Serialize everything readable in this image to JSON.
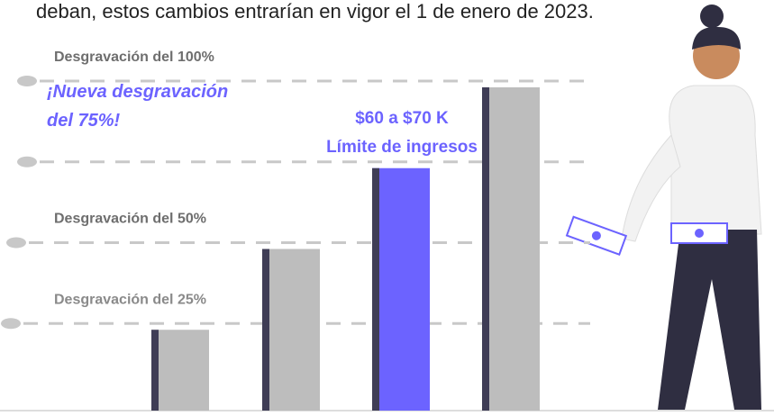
{
  "chart_data": {
    "type": "bar",
    "top_text": "deban, estos cambios entrarían en vigor el 1 de enero de 2023.",
    "categories": [
      null,
      null,
      null,
      null
    ],
    "values": [
      25,
      50,
      75,
      100
    ],
    "colors": [
      "#bdbdbd",
      "#bdbdbd",
      "#6c63ff",
      "#bdbdbd"
    ],
    "edge_color": "#3f3d56",
    "ylim": [
      0,
      100
    ],
    "yticks": [
      {
        "value": 25,
        "label": [
          "Desgravación del 25%"
        ],
        "color": "#8a8a8a"
      },
      {
        "value": 50,
        "label": [
          "Desgravación del 50%"
        ],
        "color": "#6e6e6e"
      },
      {
        "value": 75,
        "label": [
          "¡Nueva desgravación",
          "del 75%!"
        ],
        "color": "#6c63ff"
      },
      {
        "value": 100,
        "label": [
          "Desgravación del 100%"
        ],
        "color": "#6e6e6e"
      }
    ],
    "grid": true,
    "annotation": [
      "$60 a $70 K",
      "Límite de ingresos"
    ],
    "annotation_color": "#6c63ff"
  }
}
